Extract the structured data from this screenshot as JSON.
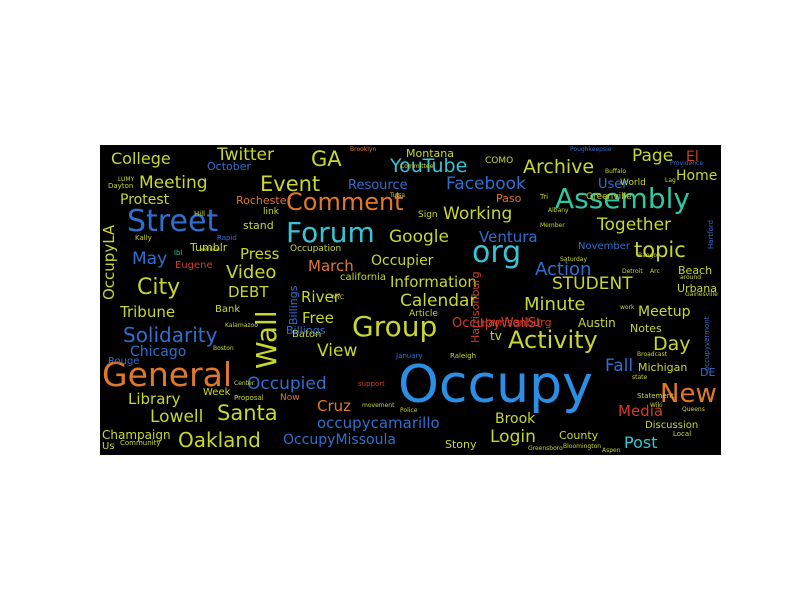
{
  "colors": {
    "background": "#000000",
    "blue": "#2f6fd0",
    "lightblue": "#2b9fe6",
    "cyan": "#35c6d6",
    "teal": "#2fc6a2",
    "green": "#7ad34a",
    "yellow": "#c9d62e",
    "orange": "#e0782a",
    "red": "#d23a2a"
  },
  "words": {
    "occupy": "Occupy",
    "general": "General",
    "street": "Street",
    "assembly": "Assembly",
    "forum": "Forum",
    "group": "Group",
    "org": "org",
    "comment": "Comment",
    "wall": "Wall",
    "activity": "Activity",
    "day": "Day",
    "new": "New",
    "event": "Event",
    "city": "City",
    "santa": "Santa",
    "oakland": "Oakland",
    "solidarity": "Solidarity",
    "youtube": "YouTube",
    "archive": "Archive",
    "facebook": "Facebook",
    "twitter": "Twitter",
    "college": "College",
    "meeting": "Meeting",
    "ga": "GA",
    "page": "Page",
    "home": "Home",
    "google": "Google",
    "working": "Working",
    "together": "Together",
    "topic": "topic",
    "action": "Action",
    "student": "STUDENT",
    "minute": "Minute",
    "calendar": "Calendar",
    "information": "Information",
    "occupier": "Occupier",
    "march": "March",
    "ventura": "Ventura",
    "video": "Video",
    "press": "Press",
    "may": "May",
    "debt": "DEBT",
    "tribune": "Tribune",
    "chicago": "Chicago",
    "library": "Library",
    "lowell": "Lowell",
    "occupied": "Occupied",
    "view": "View",
    "river": "River",
    "free": "Free",
    "cruz": "Cruz",
    "occupycamarillo": "occupycamarillo",
    "occupymissoula": "OccupyMissoula",
    "login": "Login",
    "brook": "Brook",
    "stony": "Stony",
    "post": "Post",
    "media": "Media",
    "meetup": "Meetup",
    "fall": "Fall",
    "occupywallst": "OccupyWallSt",
    "harrisonburg": "Harrisonburg",
    "austin": "Austin",
    "occupyla": "OccupyLA",
    "protest": "Protest",
    "resource": "Resource",
    "user": "User",
    "october": "October",
    "rochester": "Rochester",
    "tumblr": "Tumblr",
    "eugene": "Eugene",
    "champaign": "Champaign",
    "county": "County",
    "notes": "Notes",
    "michigan": "Michigan",
    "beach": "Beach",
    "urbana": "Urbana",
    "tv": "tv",
    "baton": "Baton",
    "california": "california",
    "billings": "Billings",
    "occupation": "Occupation",
    "stand": "stand",
    "montana": "Montana",
    "paso": "Paso",
    "november": "November",
    "sign": "Sign",
    "article": "Article",
    "week": "Week",
    "bank": "Bank",
    "rouge": "Rouge",
    "discussion": "Discussion",
    "greenville": "Greenville",
    "como": "COMO",
    "el": "El",
    "world": "World",
    "link": "link",
    "us": "Us",
    "now": "Now",
    "de": "DE",
    "kally": "Kally",
    "rapid": "Rapid",
    "hill": "Hill",
    "lbl": "lbl",
    "raleigh": "Raleigh",
    "january": "January",
    "support": "support",
    "movement": "movement",
    "saturday": "Saturday",
    "statement": "Statement",
    "local": "Local",
    "proposal": "Proposal",
    "community": "Community",
    "bloomington": "Bloomington",
    "greensboro": "Greensboro",
    "boston": "Boston",
    "bangor": "Bangor",
    "tri": "Tri",
    "albany": "Albany",
    "member": "Member",
    "poughkeepsie": "Poughkeepsie",
    "providence": "Providence",
    "buffalo": "Buffalo",
    "lag": "Lag",
    "detroit": "Detroit",
    "arc": "Arc",
    "gainesville": "Gainesville",
    "work": "work",
    "center": "Center",
    "police": "Police",
    "wiki": "Wiki",
    "state": "state",
    "occupyvermont": "occupyvermont",
    "around": "around",
    "broadcast": "Broadcast",
    "hartford": "Hartford",
    "aspen": "Aspen",
    "queens": "Queens",
    "brooklyn": "Brooklyn",
    "committee": "Committee",
    "dayton": "Dayton",
    "lumy": "LUMY",
    "kalamazoo": "Kalamazoo",
    "nyc": "NYC",
    "tulsa": "Tulsa",
    "venice": "Venice"
  }
}
